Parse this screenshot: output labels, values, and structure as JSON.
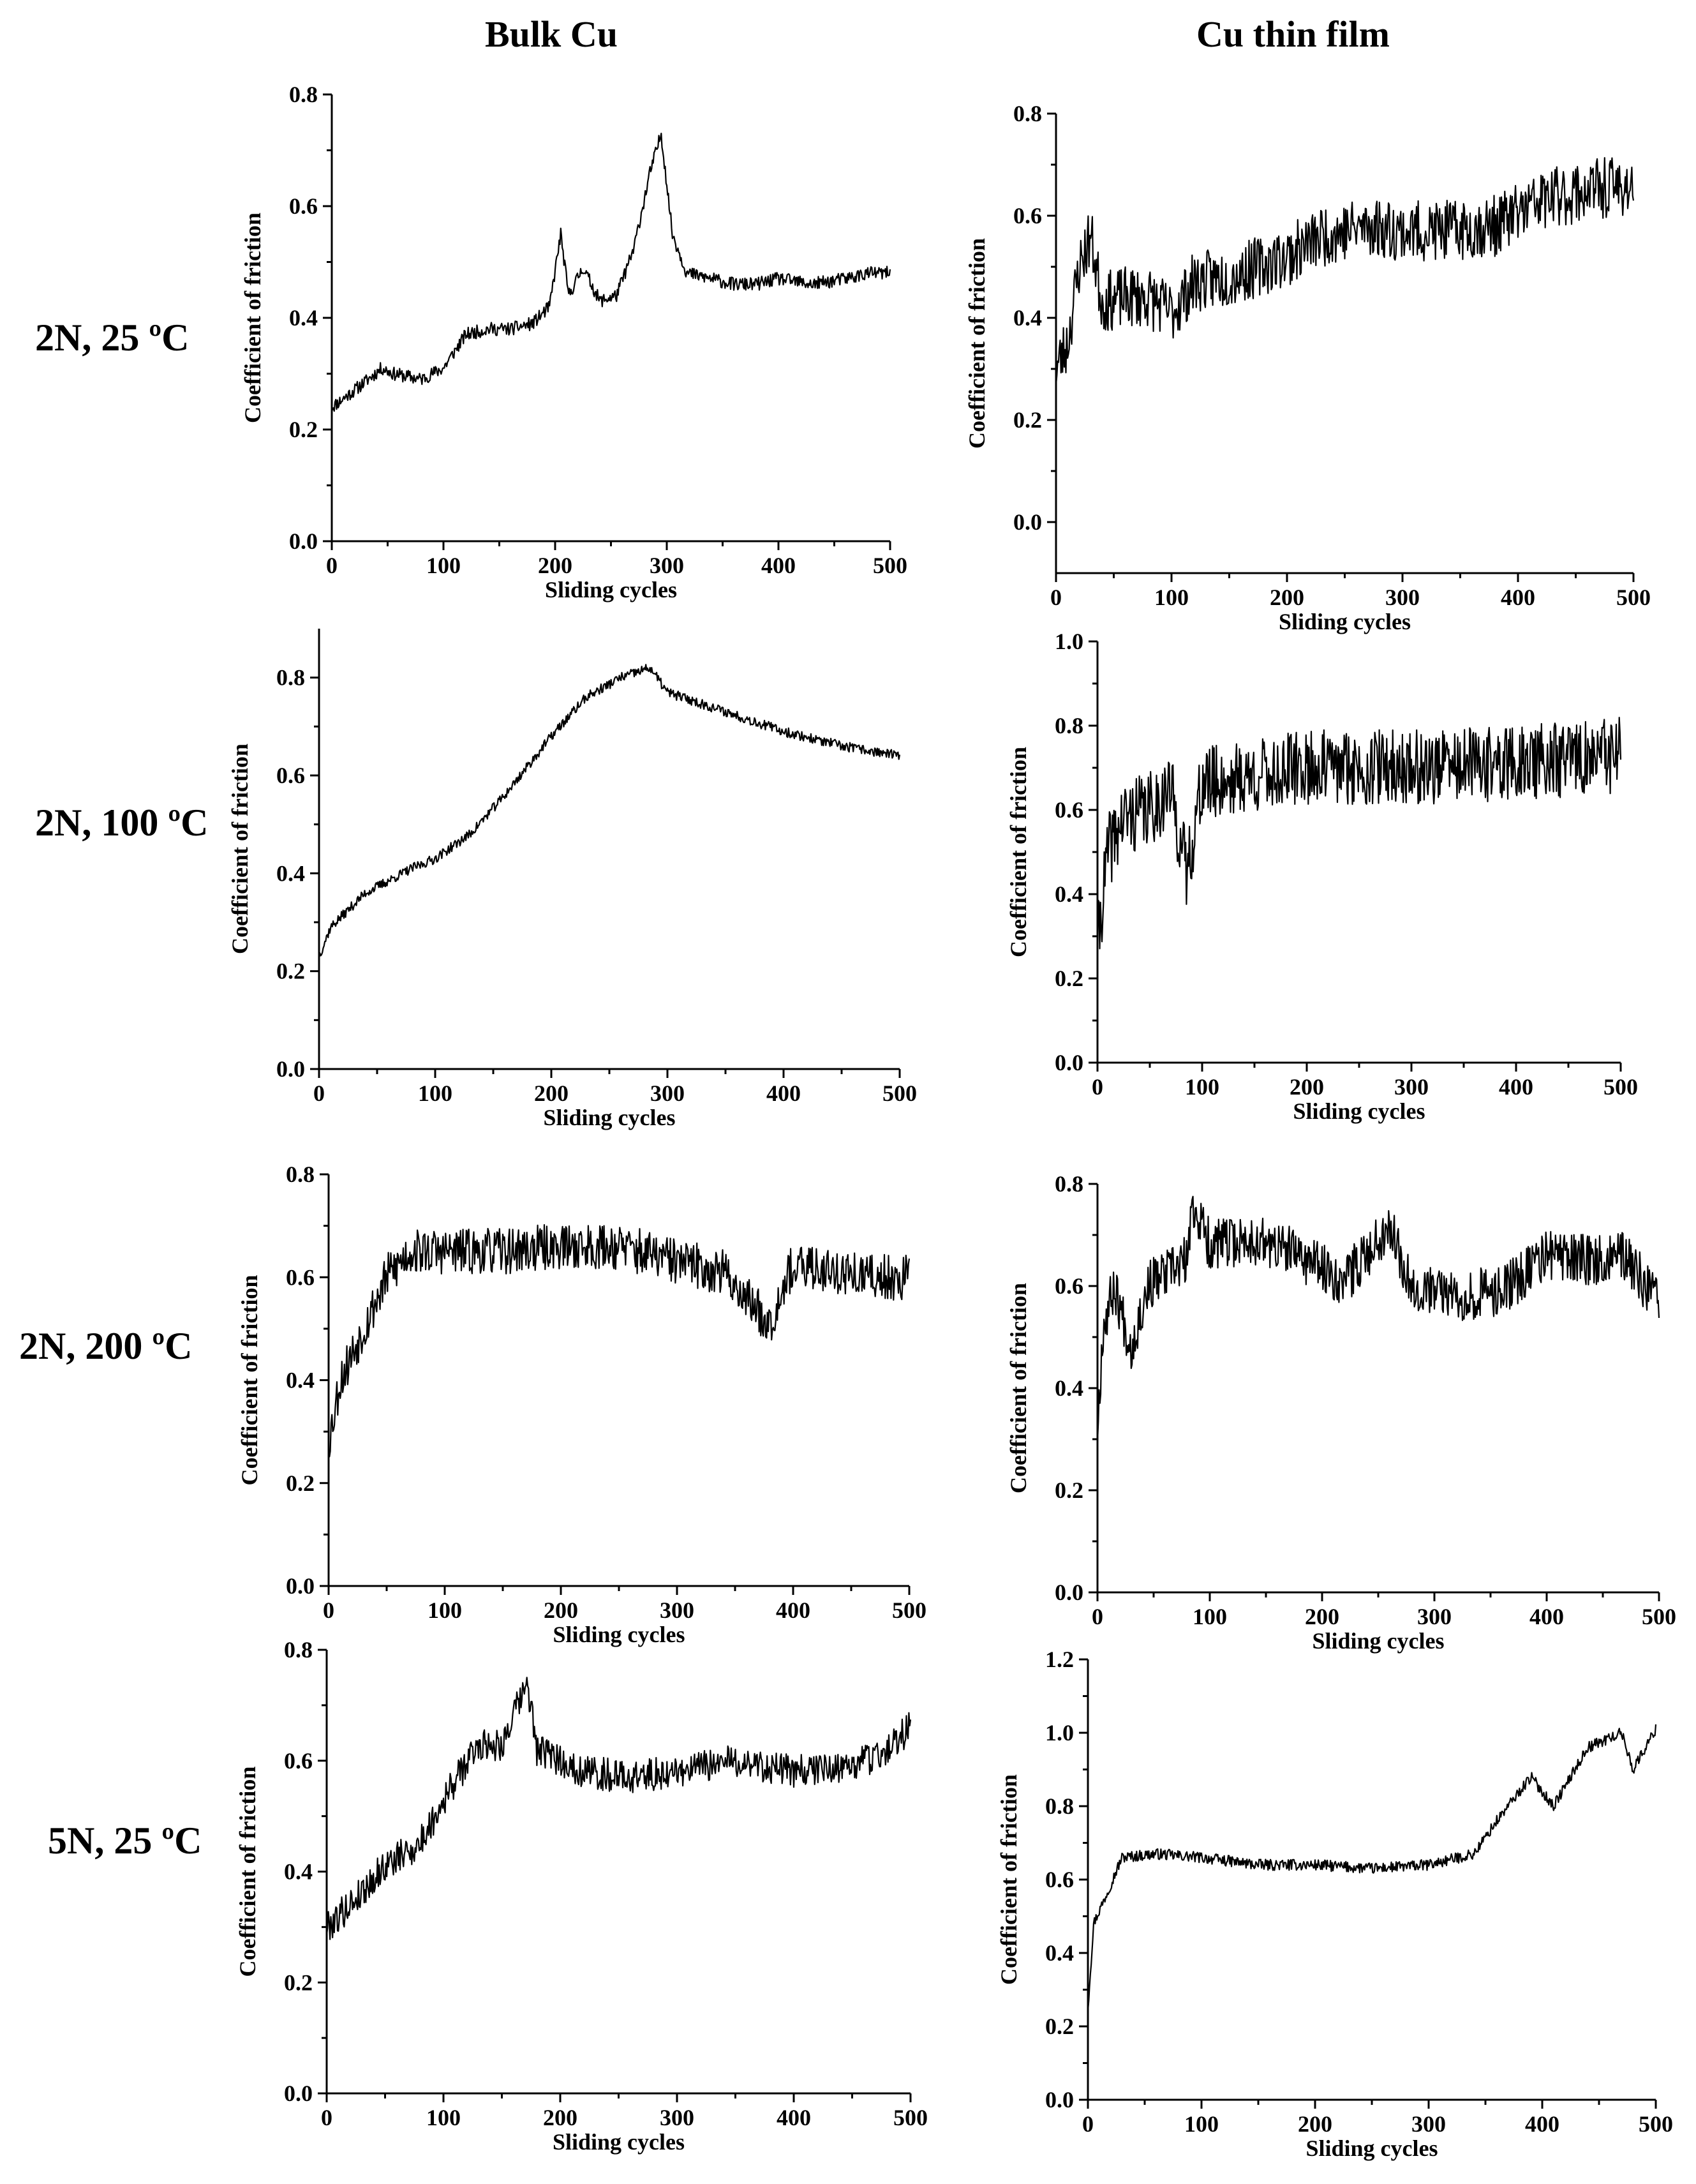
{
  "columns": {
    "left": "Bulk Cu",
    "right": "Cu thin  film"
  },
  "rows": [
    "2N, 25 ºC",
    "2N, 100 ºC",
    "2N, 200 ºC",
    "5N, 25 ºC"
  ],
  "chart_data": [
    {
      "id": "bulk-2n-25",
      "type": "line",
      "column": "Bulk Cu",
      "row": "2N, 25 ºC",
      "xlabel": "Sliding cycles",
      "ylabel": "Coefficient of friction",
      "xlim": [
        0,
        500
      ],
      "ylim": [
        0,
        0.8
      ],
      "xticks": [
        "0",
        "100",
        "200",
        "300",
        "400",
        "500"
      ],
      "yticks": [
        "0.0",
        "0.2",
        "0.4",
        "0.6",
        "0.8"
      ],
      "series": [
        {
          "noise": 0.012,
          "seed": 11,
          "points": [
            [
              0,
              0.24
            ],
            [
              20,
              0.27
            ],
            [
              45,
              0.31
            ],
            [
              55,
              0.3
            ],
            [
              80,
              0.29
            ],
            [
              100,
              0.31
            ],
            [
              120,
              0.37
            ],
            [
              140,
              0.38
            ],
            [
              160,
              0.38
            ],
            [
              180,
              0.39
            ],
            [
              195,
              0.42
            ],
            [
              205,
              0.55
            ],
            [
              212,
              0.44
            ],
            [
              225,
              0.49
            ],
            [
              240,
              0.43
            ],
            [
              255,
              0.44
            ],
            [
              270,
              0.52
            ],
            [
              285,
              0.66
            ],
            [
              295,
              0.73
            ],
            [
              305,
              0.55
            ],
            [
              318,
              0.48
            ],
            [
              340,
              0.47
            ],
            [
              360,
              0.46
            ],
            [
              380,
              0.46
            ],
            [
              400,
              0.47
            ],
            [
              430,
              0.46
            ],
            [
              460,
              0.47
            ],
            [
              480,
              0.48
            ],
            [
              500,
              0.48
            ]
          ]
        }
      ]
    },
    {
      "id": "film-2n-25",
      "type": "line",
      "column": "Cu thin  film",
      "row": "2N, 25 ºC",
      "xlabel": "Sliding cycles",
      "ylabel": "Coefficient of friction",
      "xlim": [
        0,
        500
      ],
      "ylim": [
        -0.1,
        0.8
      ],
      "xticks": [
        "0",
        "100",
        "200",
        "300",
        "400",
        "500"
      ],
      "yticks": [
        "0.0",
        "0.2",
        "0.4",
        "0.6",
        "0.8"
      ],
      "series": [
        {
          "noise": 0.06,
          "seed": 23,
          "points": [
            [
              0,
              0.3
            ],
            [
              10,
              0.35
            ],
            [
              20,
              0.5
            ],
            [
              30,
              0.56
            ],
            [
              40,
              0.43
            ],
            [
              60,
              0.44
            ],
            [
              80,
              0.44
            ],
            [
              100,
              0.41
            ],
            [
              120,
              0.47
            ],
            [
              150,
              0.48
            ],
            [
              200,
              0.52
            ],
            [
              230,
              0.56
            ],
            [
              270,
              0.58
            ],
            [
              300,
              0.57
            ],
            [
              340,
              0.57
            ],
            [
              380,
              0.58
            ],
            [
              420,
              0.63
            ],
            [
              460,
              0.65
            ],
            [
              500,
              0.66
            ]
          ]
        }
      ]
    },
    {
      "id": "bulk-2n-100",
      "type": "line",
      "column": "Bulk Cu",
      "row": "2N, 100 ºC",
      "xlabel": "Sliding cycles",
      "ylabel": "Coefficient of friction",
      "xlim": [
        0,
        500
      ],
      "ylim": [
        0,
        0.9
      ],
      "xticks": [
        "0",
        "100",
        "200",
        "300",
        "400",
        "500"
      ],
      "yticks": [
        "0.0",
        "0.2",
        "0.4",
        "0.6",
        "0.8"
      ],
      "series": [
        {
          "noise": 0.01,
          "seed": 37,
          "points": [
            [
              0,
              0.23
            ],
            [
              10,
              0.29
            ],
            [
              40,
              0.36
            ],
            [
              80,
              0.41
            ],
            [
              100,
              0.43
            ],
            [
              130,
              0.48
            ],
            [
              160,
              0.56
            ],
            [
              200,
              0.68
            ],
            [
              230,
              0.76
            ],
            [
              260,
              0.8
            ],
            [
              285,
              0.82
            ],
            [
              300,
              0.77
            ],
            [
              350,
              0.73
            ],
            [
              400,
              0.69
            ],
            [
              450,
              0.66
            ],
            [
              500,
              0.64
            ]
          ]
        }
      ]
    },
    {
      "id": "film-2n-100",
      "type": "line",
      "column": "Cu thin  film",
      "row": "2N, 100 ºC",
      "xlabel": "Sliding cycles",
      "ylabel": "Coefficient of friction",
      "xlim": [
        0,
        500
      ],
      "ylim": [
        0,
        1.0
      ],
      "xticks": [
        "0",
        "100",
        "200",
        "300",
        "400",
        "500"
      ],
      "yticks": [
        "0.0",
        "0.2",
        "0.4",
        "0.6",
        "0.8",
        "1.0"
      ],
      "series": [
        {
          "noise": 0.09,
          "seed": 41,
          "points": [
            [
              0,
              0.28
            ],
            [
              10,
              0.5
            ],
            [
              25,
              0.58
            ],
            [
              50,
              0.6
            ],
            [
              70,
              0.65
            ],
            [
              85,
              0.45
            ],
            [
              100,
              0.66
            ],
            [
              150,
              0.68
            ],
            [
              200,
              0.7
            ],
            [
              300,
              0.7
            ],
            [
              400,
              0.71
            ],
            [
              500,
              0.73
            ]
          ]
        }
      ]
    },
    {
      "id": "bulk-2n-200",
      "type": "line",
      "column": "Bulk Cu",
      "row": "2N, 200 ºC",
      "xlabel": "Sliding cycles",
      "ylabel": "Coefficient of friction",
      "xlim": [
        0,
        500
      ],
      "ylim": [
        0,
        0.8
      ],
      "xticks": [
        "0",
        "100",
        "200",
        "300",
        "400",
        "500"
      ],
      "yticks": [
        "0.0",
        "0.2",
        "0.4",
        "0.6",
        "0.8"
      ],
      "series": [
        {
          "noise": 0.045,
          "seed": 53,
          "points": [
            [
              0,
              0.28
            ],
            [
              10,
              0.4
            ],
            [
              30,
              0.5
            ],
            [
              50,
              0.6
            ],
            [
              70,
              0.65
            ],
            [
              100,
              0.65
            ],
            [
              150,
              0.65
            ],
            [
              200,
              0.66
            ],
            [
              250,
              0.66
            ],
            [
              300,
              0.63
            ],
            [
              340,
              0.61
            ],
            [
              360,
              0.56
            ],
            [
              380,
              0.51
            ],
            [
              395,
              0.61
            ],
            [
              420,
              0.62
            ],
            [
              460,
              0.6
            ],
            [
              500,
              0.6
            ]
          ]
        }
      ]
    },
    {
      "id": "film-2n-200",
      "type": "line",
      "column": "Cu thin  film",
      "row": "2N, 200 ºC",
      "xlabel": "Sliding cycles",
      "ylabel": "Coefficient of friction",
      "xlim": [
        0,
        500
      ],
      "ylim": [
        0,
        0.8
      ],
      "xticks": [
        "0",
        "100",
        "200",
        "300",
        "400",
        "500"
      ],
      "yticks": [
        "0.0",
        "0.2",
        "0.4",
        "0.6",
        "0.8"
      ],
      "series": [
        {
          "noise": 0.05,
          "seed": 67,
          "points": [
            [
              0,
              0.32
            ],
            [
              5,
              0.52
            ],
            [
              15,
              0.6
            ],
            [
              30,
              0.48
            ],
            [
              45,
              0.6
            ],
            [
              80,
              0.65
            ],
            [
              85,
              0.76
            ],
            [
              100,
              0.68
            ],
            [
              140,
              0.69
            ],
            [
              180,
              0.66
            ],
            [
              220,
              0.61
            ],
            [
              260,
              0.72
            ],
            [
              280,
              0.6
            ],
            [
              320,
              0.58
            ],
            [
              360,
              0.59
            ],
            [
              400,
              0.66
            ],
            [
              440,
              0.65
            ],
            [
              470,
              0.66
            ],
            [
              500,
              0.56
            ]
          ]
        }
      ]
    },
    {
      "id": "bulk-5n-25",
      "type": "line",
      "column": "Bulk Cu",
      "row": "5N, 25 ºC",
      "xlabel": "Sliding cycles",
      "ylabel": "Coefficient of friction",
      "xlim": [
        0,
        500
      ],
      "ylim": [
        0,
        0.8
      ],
      "xticks": [
        "0",
        "100",
        "200",
        "300",
        "400",
        "500"
      ],
      "yticks": [
        "0.0",
        "0.2",
        "0.4",
        "0.6",
        "0.8"
      ],
      "series": [
        {
          "noise": 0.03,
          "seed": 79,
          "points": [
            [
              0,
              0.3
            ],
            [
              20,
              0.34
            ],
            [
              50,
              0.41
            ],
            [
              80,
              0.45
            ],
            [
              100,
              0.53
            ],
            [
              130,
              0.63
            ],
            [
              150,
              0.63
            ],
            [
              172,
              0.74
            ],
            [
              180,
              0.62
            ],
            [
              220,
              0.58
            ],
            [
              260,
              0.57
            ],
            [
              300,
              0.58
            ],
            [
              350,
              0.6
            ],
            [
              400,
              0.58
            ],
            [
              450,
              0.59
            ],
            [
              480,
              0.62
            ],
            [
              500,
              0.66
            ]
          ]
        }
      ]
    },
    {
      "id": "film-5n-25",
      "type": "line",
      "column": "Cu thin  film",
      "row": "5N, 25 ºC",
      "xlabel": "Sliding cycles",
      "ylabel": "Coefficient of friction",
      "xlim": [
        0,
        500
      ],
      "ylim": [
        0,
        1.2
      ],
      "xticks": [
        "0",
        "100",
        "200",
        "300",
        "400",
        "500"
      ],
      "yticks": [
        "0.0",
        "0.2",
        "0.4",
        "0.6",
        "0.8",
        "1.0",
        "1.2"
      ],
      "series": [
        {
          "noise": 0.015,
          "seed": 97,
          "points": [
            [
              0,
              0.25
            ],
            [
              5,
              0.48
            ],
            [
              15,
              0.55
            ],
            [
              30,
              0.66
            ],
            [
              60,
              0.67
            ],
            [
              100,
              0.66
            ],
            [
              150,
              0.64
            ],
            [
              200,
              0.64
            ],
            [
              250,
              0.63
            ],
            [
              300,
              0.64
            ],
            [
              340,
              0.67
            ],
            [
              360,
              0.76
            ],
            [
              390,
              0.88
            ],
            [
              410,
              0.8
            ],
            [
              440,
              0.96
            ],
            [
              470,
              1.0
            ],
            [
              480,
              0.9
            ],
            [
              500,
              1.01
            ]
          ]
        }
      ]
    }
  ]
}
